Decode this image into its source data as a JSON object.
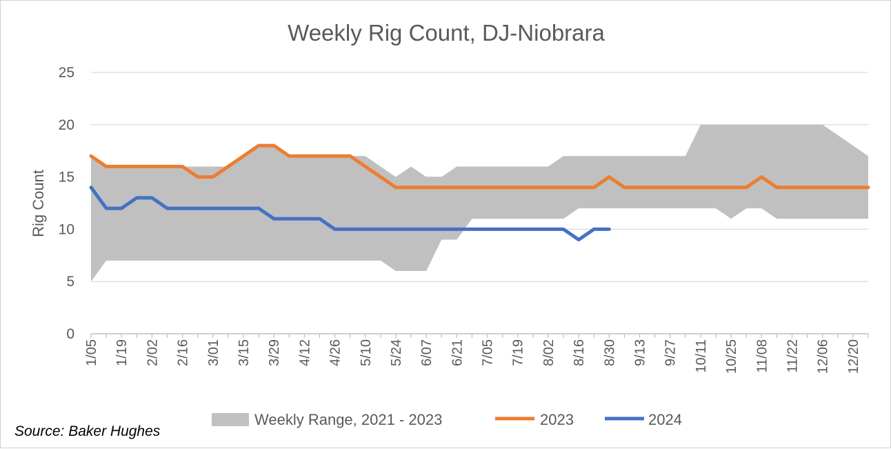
{
  "chart_data": {
    "type": "line",
    "title": "Weekly Rig Count, DJ-Niobrara",
    "ylabel": "Rig Count",
    "xlabel": "",
    "ylim": [
      0,
      25
    ],
    "y_ticks": [
      0,
      5,
      10,
      15,
      20,
      25
    ],
    "grid": true,
    "legend_position": "bottom",
    "x_tick_labels": [
      "1/05",
      "1/19",
      "2/02",
      "2/16",
      "3/01",
      "3/15",
      "3/29",
      "4/12",
      "4/26",
      "5/10",
      "5/24",
      "6/07",
      "6/21",
      "7/05",
      "7/19",
      "8/02",
      "8/16",
      "8/30",
      "9/13",
      "9/27",
      "10/11",
      "10/25",
      "11/08",
      "11/22",
      "12/06",
      "12/20"
    ],
    "week_count": 52,
    "range_series": {
      "name": "Weekly Range, 2021 - 2023",
      "color": "#c0c0c0",
      "min": [
        5,
        7,
        7,
        7,
        7,
        7,
        7,
        7,
        7,
        7,
        7,
        7,
        7,
        7,
        7,
        7,
        7,
        7,
        7,
        7,
        6,
        6,
        6,
        9,
        9,
        11,
        11,
        11,
        11,
        11,
        11,
        11,
        12,
        12,
        12,
        12,
        12,
        12,
        12,
        12,
        12,
        12,
        11,
        12,
        12,
        11,
        11,
        11,
        11,
        11,
        11,
        11
      ],
      "max": [
        17,
        16,
        16,
        16,
        16,
        16,
        16,
        16,
        16,
        16,
        17,
        18,
        18,
        17,
        17,
        17,
        17,
        17,
        17,
        16,
        15,
        16,
        15,
        15,
        16,
        16,
        16,
        16,
        16,
        16,
        16,
        17,
        17,
        17,
        17,
        17,
        17,
        17,
        17,
        17,
        20,
        20,
        20,
        20,
        20,
        20,
        20,
        20,
        20,
        19,
        18,
        17
      ]
    },
    "series": [
      {
        "name": "2023",
        "color": "#ed7d31",
        "values": [
          17,
          16,
          16,
          16,
          16,
          16,
          16,
          15,
          15,
          16,
          17,
          18,
          18,
          17,
          17,
          17,
          17,
          17,
          16,
          15,
          14,
          14,
          14,
          14,
          14,
          14,
          14,
          14,
          14,
          14,
          14,
          14,
          14,
          14,
          15,
          14,
          14,
          14,
          14,
          14,
          14,
          14,
          14,
          14,
          15,
          14,
          14,
          14,
          14,
          14,
          14,
          14
        ]
      },
      {
        "name": "2024",
        "color": "#4472c4",
        "values": [
          14,
          12,
          12,
          13,
          13,
          12,
          12,
          12,
          12,
          12,
          12,
          12,
          11,
          11,
          11,
          11,
          10,
          10,
          10,
          10,
          10,
          10,
          10,
          10,
          10,
          10,
          10,
          10,
          10,
          10,
          10,
          10,
          9,
          10,
          10
        ]
      }
    ]
  },
  "source_note": "Source: Baker Hughes"
}
